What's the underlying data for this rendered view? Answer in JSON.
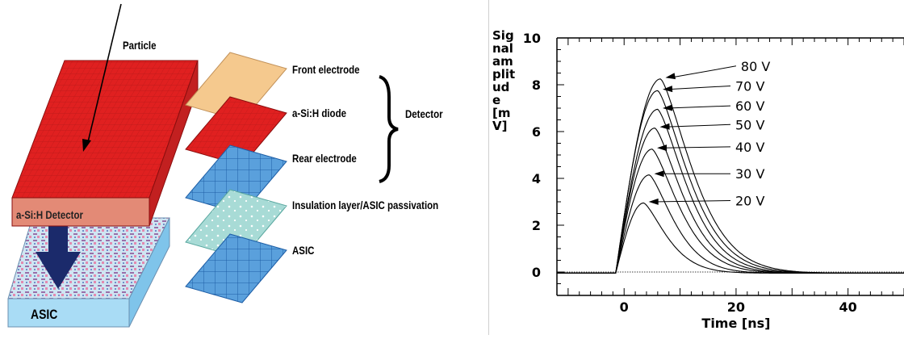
{
  "diagram": {
    "labels": {
      "particle": "Particle",
      "detector_block": "a-Si:H Detector",
      "asic_block": "ASIC",
      "front_electrode": "Front electrode",
      "diode": "a-Si:H diode",
      "rear_electrode": "Rear electrode",
      "detector_group": "Detector",
      "insulation": "Insulation layer/ASIC passivation",
      "asic_layer": "ASIC"
    },
    "colors": {
      "detector_red": "#e02020",
      "asic_blue": "#a9dcf5",
      "electrode_tan": "#f5c98e",
      "arrow_navy": "#1b2a6b",
      "tile_blue": "#3d8fd4"
    }
  },
  "chart_data": {
    "type": "line",
    "ylabel_lines": [
      "Sig",
      "nal",
      "am",
      "plit",
      "ud",
      "e",
      "[m",
      "V]"
    ],
    "xlabel": "Time [ns]",
    "xlim": [
      -12,
      50
    ],
    "ylim": [
      -1,
      10
    ],
    "x_ticks": [
      "0",
      "20",
      "40"
    ],
    "y_ticks": [
      "0",
      "2",
      "4",
      "6",
      "8",
      "10"
    ],
    "series": [
      {
        "name": "20 V",
        "peak": 3.0,
        "peak_time": 3.5,
        "decay_end": 16
      },
      {
        "name": "30 V",
        "peak": 4.2,
        "peak_time": 4.5,
        "decay_end": 18
      },
      {
        "name": "40 V",
        "peak": 5.3,
        "peak_time": 5.0,
        "decay_end": 20
      },
      {
        "name": "50 V",
        "peak": 6.2,
        "peak_time": 5.5,
        "decay_end": 21
      },
      {
        "name": "60 V",
        "peak": 7.0,
        "peak_time": 6.0,
        "decay_end": 22
      },
      {
        "name": "70 V",
        "peak": 7.8,
        "peak_time": 6.0,
        "decay_end": 23
      },
      {
        "name": "80 V",
        "peak": 8.3,
        "peak_time": 6.5,
        "decay_end": 24
      }
    ]
  }
}
